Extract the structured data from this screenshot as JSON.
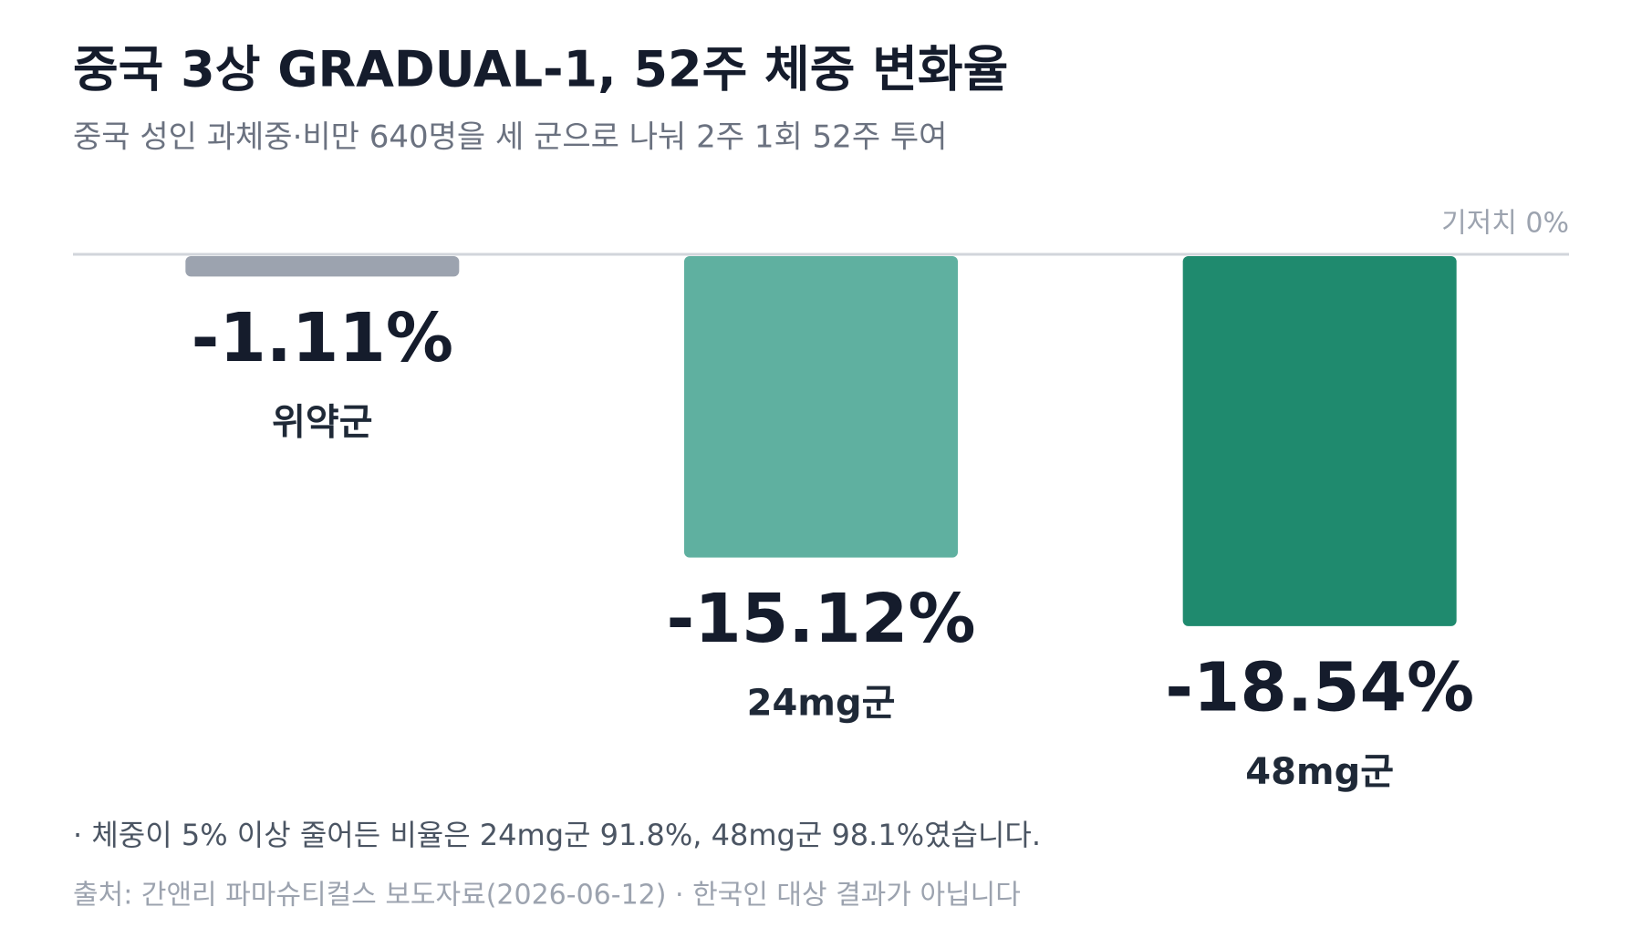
{
  "chart_data": {
    "type": "bar",
    "title": "중국 3상 GRADUAL-1, 52주 체중 변화율",
    "subtitle": "중국 성인 과체중·비만 640명을 세 군으로 나눠 2주 1회 52주 투여",
    "categories": [
      "위약군",
      "24mg군",
      "48mg군"
    ],
    "values": [
      -1.11,
      -15.12,
      -18.54
    ],
    "value_labels": [
      "-1.11%",
      "-15.12%",
      "-18.54%"
    ],
    "colors": [
      "#9ca3af",
      "#5fb0a0",
      "#1f8a6e"
    ],
    "ylim": [
      -25,
      0
    ],
    "yticks": [
      {
        "value": 0,
        "label": "기저치 0%"
      }
    ],
    "grid": true,
    "notes": "· 체중이 5% 이상 줄어든 비율은 24mg군 91.8%, 48mg군 98.1%였습니다.",
    "source": "출처: 간앤리 파마슈티컬스 보도자료(2026-06-12) · 한국인 대상 결과가 아닙니다"
  }
}
